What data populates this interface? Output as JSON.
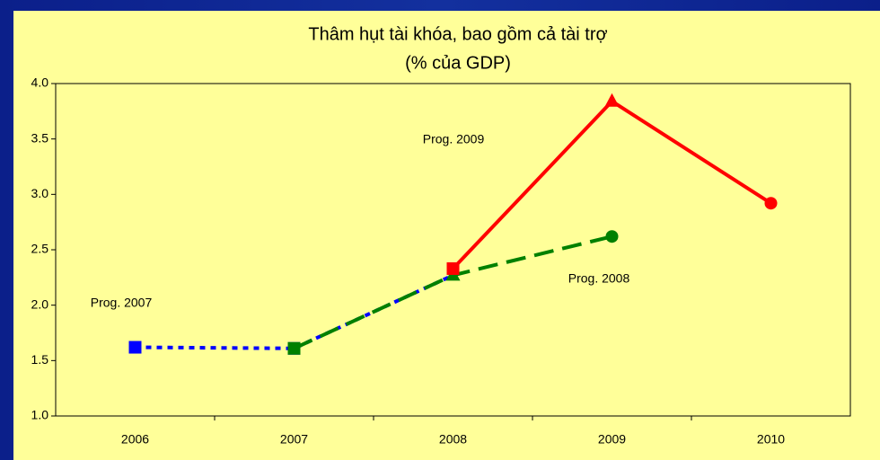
{
  "chart_data": {
    "type": "line",
    "title": "Thâm hụt tài khóa, bao gồm cả tài trợ",
    "subtitle": "(% của GDP)",
    "categories": [
      "2006",
      "2007",
      "2008",
      "2009",
      "2010"
    ],
    "series": [
      {
        "name": "Prog. 2007",
        "color": "#0000ff",
        "dash": "dotted",
        "values": [
          1.62,
          1.61,
          2.27,
          null,
          null
        ],
        "markers": [
          "square",
          "square",
          null,
          null,
          null
        ]
      },
      {
        "name": "Prog. 2008",
        "color": "#008000",
        "dash": "dashed",
        "values": [
          null,
          1.61,
          2.27,
          2.62,
          null
        ],
        "markers": [
          null,
          "square",
          "triangle",
          "circle",
          null
        ]
      },
      {
        "name": "Prog. 2009",
        "color": "#ff0000",
        "dash": "solid",
        "values": [
          null,
          null,
          2.33,
          3.84,
          2.92
        ],
        "markers": [
          null,
          null,
          "square",
          "triangle",
          "circle"
        ]
      }
    ],
    "ylim": [
      1,
      4
    ],
    "yticks": [
      {
        "value": 1,
        "label": "1.0"
      },
      1.5,
      {
        "value": 2,
        "label": "2.0"
      },
      2.5,
      {
        "value": 3,
        "label": "3.0"
      },
      3.5,
      {
        "value": 4,
        "label": "4.0"
      }
    ],
    "grid": false
  }
}
